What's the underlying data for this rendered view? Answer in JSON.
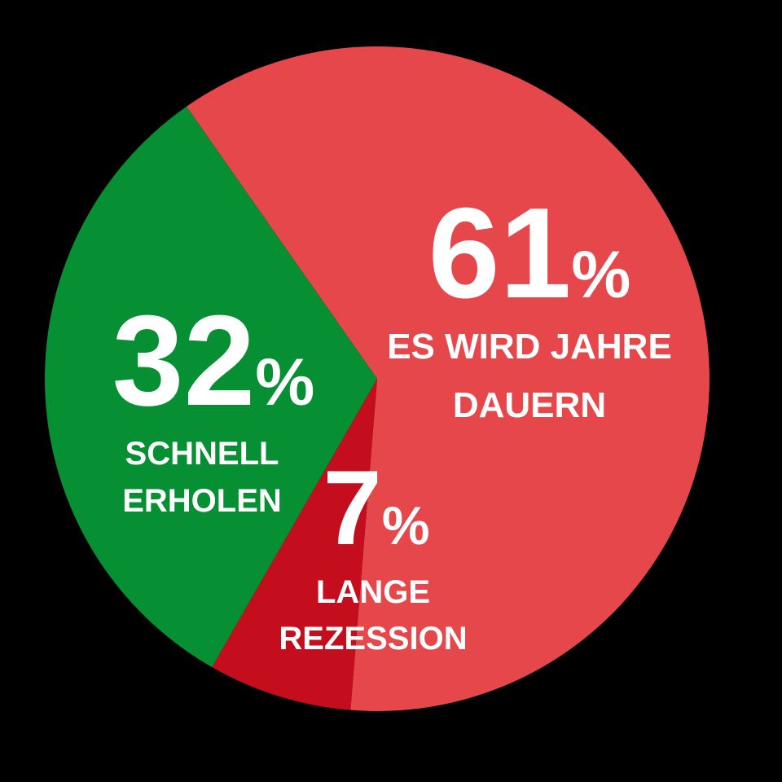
{
  "chart_data": {
    "type": "pie",
    "slices": [
      {
        "value": 61,
        "value_label": "61",
        "unit": "%",
        "label_lines": [
          "ES WIRD JAHRE",
          "DAUERN"
        ],
        "color": "#E5474B"
      },
      {
        "value": 7,
        "value_label": "7",
        "unit": "%",
        "label_lines": [
          "LANGE",
          "REZESSION"
        ],
        "color": "#C40E1E"
      },
      {
        "value": 32,
        "value_label": "32",
        "unit": "%",
        "label_lines": [
          "SCHNELL",
          "ERHOLEN"
        ],
        "color": "#078F34"
      }
    ]
  },
  "colors": {
    "background": "#000000",
    "text": "#FFFFFF"
  }
}
